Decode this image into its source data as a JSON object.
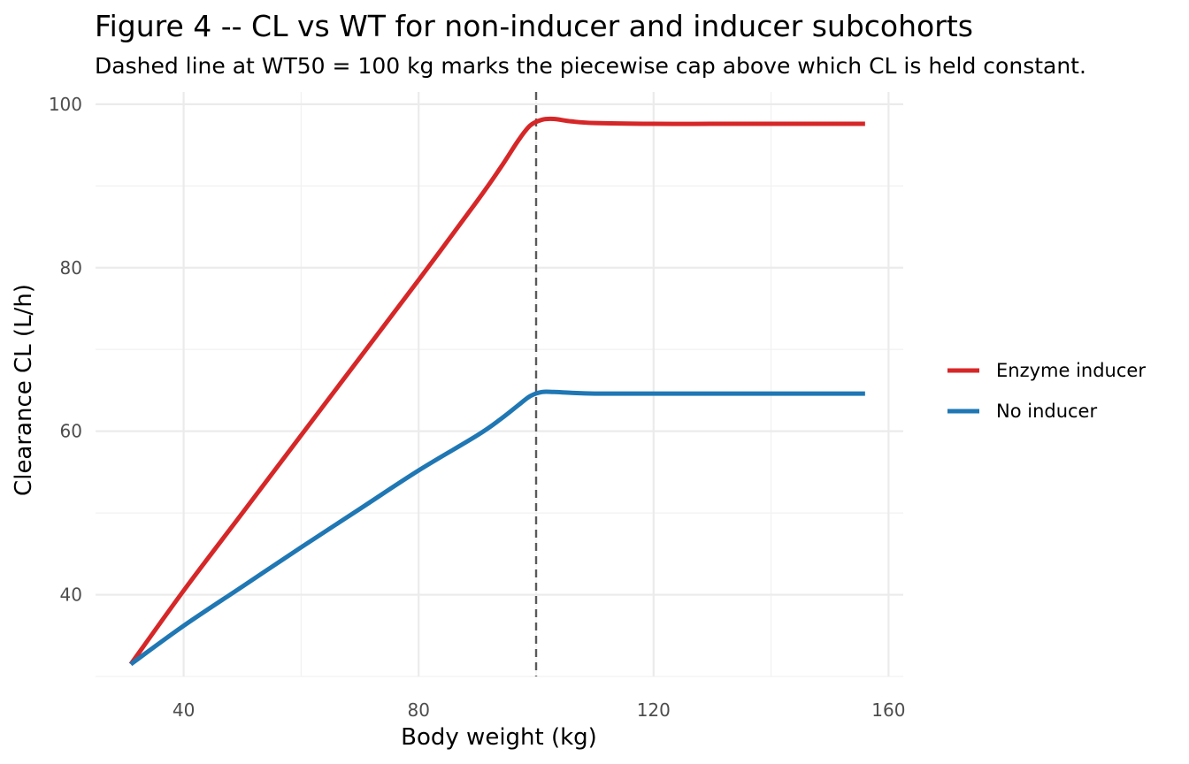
{
  "chart_data": {
    "type": "line",
    "title": "Figure 4 -- CL vs WT for non-inducer and inducer subcohorts",
    "subtitle": "Dashed line at WT50 = 100 kg marks the piecewise cap above which CL is held constant.",
    "xlabel": "Body weight (kg)",
    "ylabel": "Clearance CL (L/h)",
    "xlim": [
      25,
      162.5
    ],
    "ylim": [
      30,
      101.5
    ],
    "x_ticks": [
      40,
      80,
      120,
      160
    ],
    "x_minor_ticks": [
      60,
      100,
      140
    ],
    "y_ticks": [
      40,
      60,
      80,
      100
    ],
    "y_minor_ticks": [
      30,
      50,
      70,
      90
    ],
    "grid": true,
    "legend_position": "right",
    "reference_line": {
      "axis": "x",
      "value": 100,
      "style": "dashed",
      "color": "#5a5a5a"
    },
    "series": [
      {
        "name": "Enzyme inducer",
        "color": "#d62728",
        "x": [
          31,
          40,
          50,
          60,
          70,
          80,
          90,
          94,
          97,
          99,
          101,
          103,
          106,
          110,
          120,
          130,
          140,
          150,
          156
        ],
        "y": [
          31.5,
          40.5,
          50.0,
          59.5,
          69.0,
          78.5,
          88.2,
          92.3,
          95.6,
          97.4,
          98.1,
          98.2,
          97.9,
          97.7,
          97.6,
          97.6,
          97.6,
          97.6,
          97.6
        ]
      },
      {
        "name": "No inducer",
        "color": "#1f77b4",
        "x": [
          31,
          40,
          50,
          60,
          70,
          80,
          90,
          94,
          97,
          99,
          101,
          103,
          106,
          110,
          120,
          130,
          140,
          150,
          156
        ],
        "y": [
          31.5,
          36.2,
          41.0,
          45.8,
          50.5,
          55.2,
          59.5,
          61.5,
          63.2,
          64.3,
          64.8,
          64.8,
          64.7,
          64.6,
          64.6,
          64.6,
          64.6,
          64.6,
          64.6
        ]
      }
    ]
  }
}
